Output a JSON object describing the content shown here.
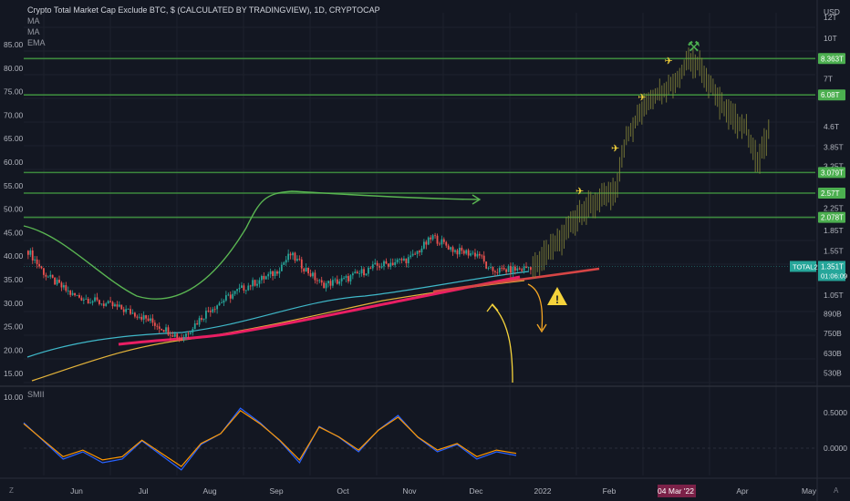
{
  "header": {
    "title": "Crypto Total Market Cap Exclude BTC, $ (CALCULATED BY TRADINGVIEW), 1D, CRYPTOCAP",
    "indicators": [
      "MA",
      "MA",
      "EMA"
    ]
  },
  "left_axis": {
    "ticks": [
      "85.00",
      "80.00",
      "75.00",
      "70.00",
      "65.00",
      "60.00",
      "55.00",
      "50.00",
      "45.00",
      "40.00",
      "35.00",
      "30.00",
      "25.00",
      "20.00",
      "15.00",
      "10.00"
    ]
  },
  "right_axis": {
    "unit": "USD",
    "ticks": [
      "12T",
      "10T",
      "7T",
      "6T",
      "4.6T",
      "3.85T",
      "3.25T",
      "2.25T",
      "1.85T",
      "1.55T",
      "1.05T",
      "890B",
      "750B",
      "630B",
      "530B"
    ],
    "level_plates": [
      {
        "label": "8.363T",
        "color": "#4caf50"
      },
      {
        "label": "6.08T",
        "color": "#4caf50"
      },
      {
        "label": "3.079T",
        "color": "#4caf50"
      },
      {
        "label": "2.57T",
        "color": "#4caf50"
      },
      {
        "label": "2.078T",
        "color": "#4caf50"
      }
    ],
    "symbol_tag": "TOTAL2",
    "price_tag": "1.351T",
    "countdown": "01:06:09",
    "price_tag_color": "#26a69a"
  },
  "oscillator": {
    "name": "SMII",
    "ticks": [
      "0.5000",
      "0.0000"
    ],
    "line_colors": [
      "#2962ff",
      "#ff9800"
    ]
  },
  "x_axis": {
    "labels": [
      "Jun",
      "Jul",
      "Aug",
      "Sep",
      "Oct",
      "Nov",
      "Dec",
      "2022",
      "Feb",
      "04 Mar '22",
      "Apr",
      "May"
    ],
    "highlight": "04 Mar '22",
    "highlight_color": "#7b2148"
  },
  "footer": {
    "left_icon": "Z",
    "right_icon": "A"
  },
  "chart_data": {
    "type": "candlestick",
    "title": "Crypto Total Market Cap Exclude BTC, $ (CALCULATED BY TRADINGVIEW), 1D, CRYPTOCAP",
    "x_range": [
      "2021-05-10",
      "2022-05-01"
    ],
    "y_scale": "log",
    "y_unit": "USD",
    "horizontal_levels": [
      8363000000000,
      6080000000000,
      3079000000000,
      2570000000000,
      2078000000000
    ],
    "last_price": 1351000000000,
    "price_path": [
      [
        "2021-05-12",
        1550000000000.0
      ],
      [
        "2021-05-20",
        1250000000000.0
      ],
      [
        "2021-06-01",
        1050000000000.0
      ],
      [
        "2021-06-20",
        950000000000.0
      ],
      [
        "2021-07-01",
        880000000000.0
      ],
      [
        "2021-07-20",
        720000000000.0
      ],
      [
        "2021-08-01",
        920000000000.0
      ],
      [
        "2021-08-15",
        1100000000000.0
      ],
      [
        "2021-08-31",
        1280000000000.0
      ],
      [
        "2021-09-07",
        1500000000000.0
      ],
      [
        "2021-09-21",
        1150000000000.0
      ],
      [
        "2021-10-01",
        1200000000000.0
      ],
      [
        "2021-10-15",
        1350000000000.0
      ],
      [
        "2021-10-31",
        1450000000000.0
      ],
      [
        "2021-11-10",
        1750000000000.0
      ],
      [
        "2021-11-20",
        1550000000000.0
      ],
      [
        "2021-12-01",
        1500000000000.0
      ],
      [
        "2021-12-05",
        1300000000000.0
      ],
      [
        "2021-12-20",
        1320000000000.0
      ],
      [
        "2021-12-24",
        1351000000000.0
      ]
    ],
    "projection_path": [
      [
        "2021-12-25",
        1350000000000.0
      ],
      [
        "2022-01-05",
        1650000000000.0
      ],
      [
        "2022-01-15",
        2200000000000.0
      ],
      [
        "2022-01-31",
        2600000000000.0
      ],
      [
        "2022-02-05",
        4200000000000.0
      ],
      [
        "2022-02-15",
        5800000000000.0
      ],
      [
        "2022-03-01",
        7000000000000.0
      ],
      [
        "2022-03-04",
        8363000000000.0
      ],
      [
        "2022-03-10",
        8000000000000.0
      ],
      [
        "2022-03-20",
        5500000000000.0
      ],
      [
        "2022-03-31",
        4500000000000.0
      ],
      [
        "2022-04-05",
        3400000000000.0
      ],
      [
        "2022-04-10",
        4400000000000.0
      ]
    ],
    "oscillator_series": [
      {
        "name": "SMII",
        "values": [
          0.35,
          0.1,
          -0.15,
          -0.05,
          -0.2,
          -0.15,
          0.1,
          -0.1,
          -0.3,
          0.05,
          0.2,
          0.55,
          0.35,
          0.1,
          -0.2,
          0.3,
          0.15,
          -0.05,
          0.25,
          0.45,
          0.15,
          -0.05,
          0.05,
          -0.15,
          -0.05,
          -0.1
        ]
      }
    ]
  }
}
